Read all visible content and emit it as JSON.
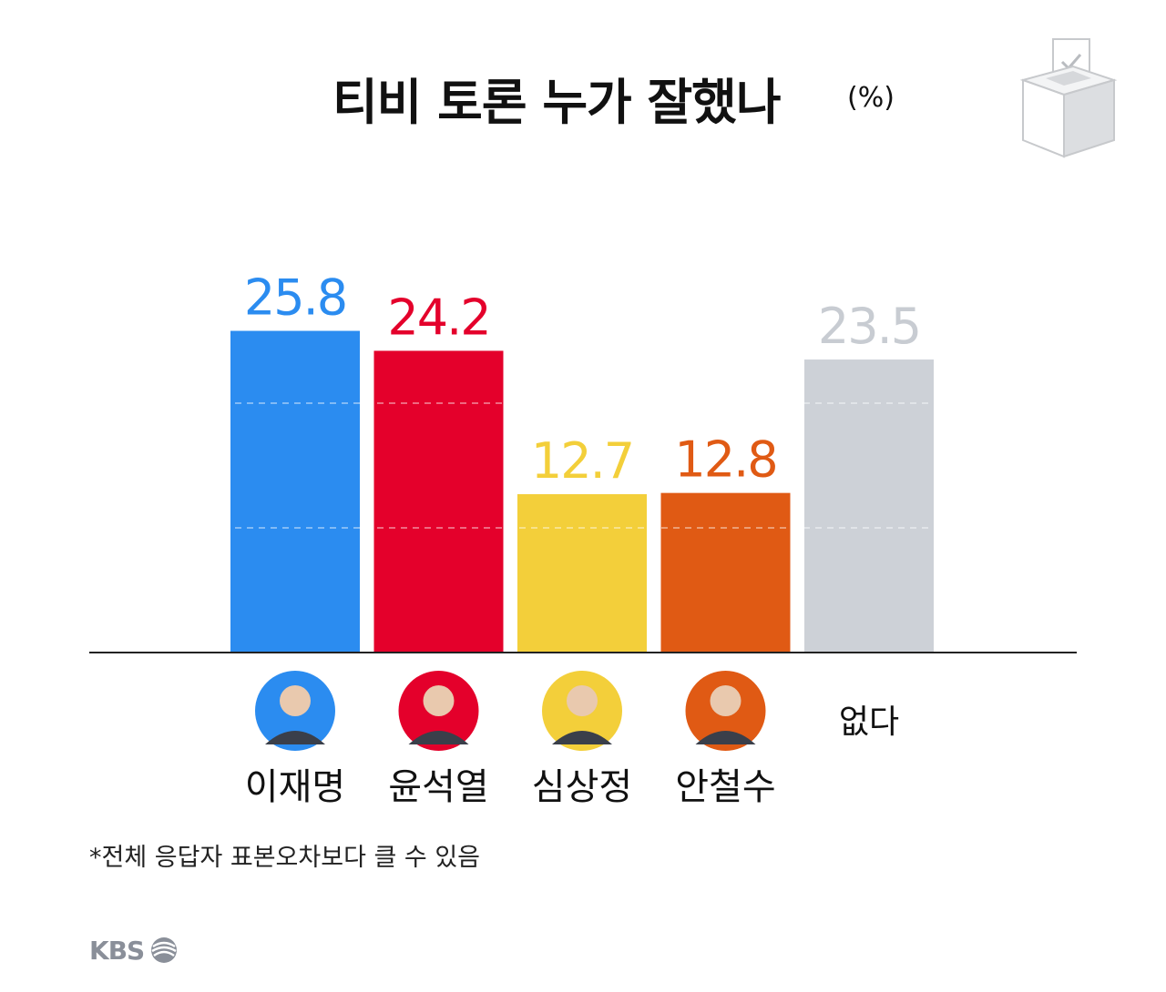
{
  "title": "티비 토론 누가 잘했나",
  "unit": "(%)",
  "footnote": "*전체 응답자 표본오차보다 클 수 있음",
  "logo_text": "KBS",
  "chart_data": {
    "type": "bar",
    "categories": [
      "이재명",
      "윤석열",
      "심상정",
      "안철수",
      "없다"
    ],
    "values": [
      25.8,
      24.2,
      12.7,
      12.8,
      23.5
    ],
    "colors": [
      "#2b8cf0",
      "#e4002b",
      "#f3cf3a",
      "#e05a14",
      "#cdd1d7"
    ],
    "label_colors": [
      "#2b8cf0",
      "#e4002b",
      "#f3cf3a",
      "#e05a14",
      "#c8ccd2"
    ],
    "avatars": [
      {
        "icon": "person-avatar-icon",
        "bg": "#2b8cf0"
      },
      {
        "icon": "person-avatar-icon",
        "bg": "#e4002b"
      },
      {
        "icon": "person-avatar-icon",
        "bg": "#f3cf3a"
      },
      {
        "icon": "person-avatar-icon",
        "bg": "#e05a14"
      },
      null
    ],
    "ylim": [
      0,
      30
    ],
    "grid": true
  }
}
